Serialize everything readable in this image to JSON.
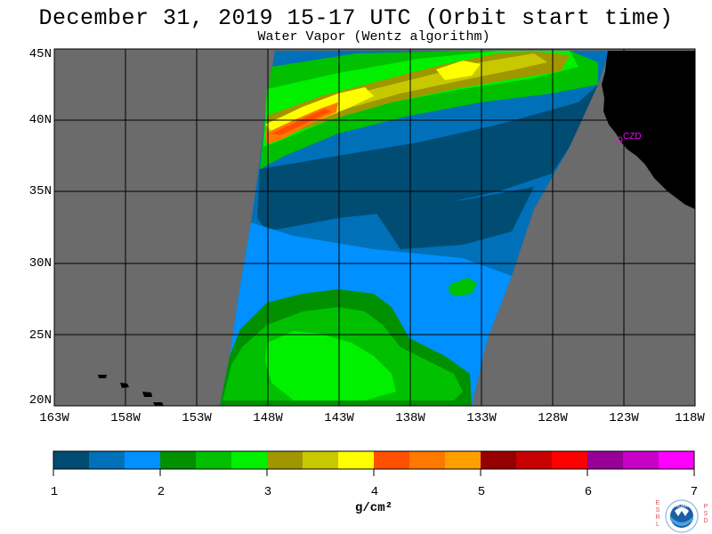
{
  "title": "December 31, 2019  15-17 UTC  (Orbit start time)",
  "subtitle": "Water Vapor (Wentz algorithm)",
  "map": {
    "lat_labels": [
      "45N",
      "40N",
      "35N",
      "30N",
      "25N",
      "20N"
    ],
    "lon_labels": [
      "163W",
      "158W",
      "153W",
      "148W",
      "143W",
      "138W",
      "133W",
      "128W",
      "123W",
      "118W"
    ],
    "station_label": "CZD",
    "colors": {
      "no_data": "#6b6b6b",
      "land": "#000000",
      "grid": "#000000",
      "station": "#ff00ff"
    }
  },
  "colorbar": {
    "unit": "g/cm²",
    "tick_labels": [
      "1",
      "2",
      "3",
      "4",
      "5",
      "6",
      "7"
    ],
    "colors": [
      "#004c73",
      "#0070b8",
      "#0090ff",
      "#009000",
      "#00c000",
      "#00f000",
      "#a09600",
      "#c8c800",
      "#ffff00",
      "#ff5000",
      "#ff7800",
      "#ffa000",
      "#960000",
      "#c80000",
      "#ff0000",
      "#960096",
      "#c800c8",
      "#ff00ff"
    ]
  },
  "logo": {
    "left_letters": [
      "E",
      "S",
      "R",
      "L"
    ],
    "right_letters": [
      "P",
      "S",
      "D"
    ],
    "text": "NOAA"
  }
}
